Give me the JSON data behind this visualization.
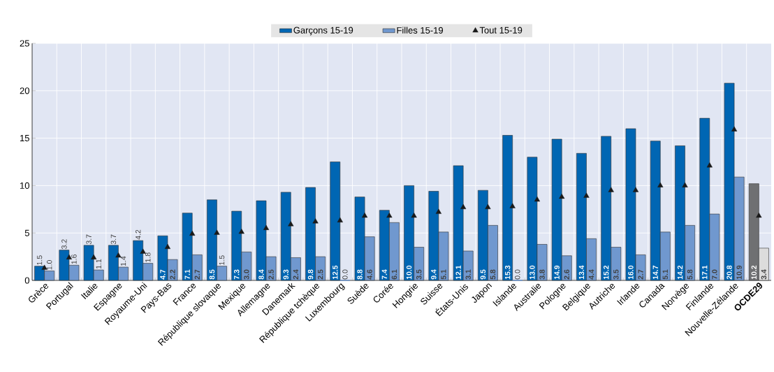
{
  "chart_data": {
    "type": "bar",
    "categories": [
      "Grèce",
      "Portugal",
      "Italie",
      "Espagne",
      "Royaume-Uni",
      "Pays-Bas",
      "France",
      "République slovaque",
      "Mexique",
      "Allemagne",
      "Danemark",
      "République tchèque",
      "Luxembourg",
      "Suède",
      "Corée",
      "Hongrie",
      "Suisse",
      "États-Unis",
      "Japon",
      "Islande",
      "Australie",
      "Pologne",
      "Belgique",
      "Autriche",
      "Irlande",
      "Canada",
      "Norvège",
      "Finlande",
      "Nouvelle-Zélande",
      "**OCDE29**"
    ],
    "series": [
      {
        "name": "Garçons 15-19",
        "color": "#0066b3",
        "colors": [
          "#0066b3",
          "#0066b3",
          "#0066b3",
          "#0066b3",
          "#0066b3",
          "#0066b3",
          "#0066b3",
          "#0066b3",
          "#0066b3",
          "#0066b3",
          "#0066b3",
          "#0066b3",
          "#0066b3",
          "#0066b3",
          "#0066b3",
          "#0066b3",
          "#0066b3",
          "#0066b3",
          "#0066b3",
          "#0066b3",
          "#0066b3",
          "#0066b3",
          "#0066b3",
          "#0066b3",
          "#0066b3",
          "#0066b3",
          "#0066b3",
          "#0066b3",
          "#0066b3",
          "#6f7072"
        ],
        "values": [
          1.5,
          3.2,
          3.7,
          3.7,
          4.2,
          4.7,
          7.1,
          8.5,
          7.3,
          8.4,
          9.3,
          9.8,
          12.5,
          8.8,
          7.4,
          10.0,
          9.4,
          12.1,
          9.5,
          15.3,
          13.0,
          14.9,
          13.4,
          15.2,
          16.0,
          14.7,
          14.2,
          17.1,
          20.8,
          10.2
        ],
        "value_labels": [
          "1.5",
          "3.2",
          "3.7",
          "3.7",
          "4.2",
          "4.7",
          "7.1",
          "8.5",
          "7.3",
          "8.4",
          "9.3",
          "9.8",
          "12.5",
          "8.8",
          "7.4",
          "10.0",
          "9.4",
          "12.1",
          "9.5",
          "15.3",
          "13.0",
          "14.9",
          "13.4",
          "15.2",
          "16.0",
          "14.7",
          "14.2",
          "17.1",
          "20.8",
          "10.2"
        ]
      },
      {
        "name": "Filles 15-19",
        "color": "#7098cf",
        "colors": [
          "#7098cf",
          "#7098cf",
          "#7098cf",
          "#7098cf",
          "#7098cf",
          "#7098cf",
          "#7098cf",
          "#7098cf",
          "#7098cf",
          "#7098cf",
          "#7098cf",
          "#7098cf",
          "#7098cf",
          "#7098cf",
          "#7098cf",
          "#7098cf",
          "#7098cf",
          "#7098cf",
          "#7098cf",
          "#7098cf",
          "#7098cf",
          "#7098cf",
          "#7098cf",
          "#7098cf",
          "#7098cf",
          "#7098cf",
          "#7098cf",
          "#7098cf",
          "#7098cf",
          "#dcdcdc"
        ],
        "values": [
          1.0,
          1.6,
          1.1,
          1.4,
          1.8,
          2.2,
          2.7,
          1.5,
          3.0,
          2.5,
          2.4,
          2.5,
          0.0,
          4.6,
          6.1,
          3.5,
          5.1,
          3.1,
          5.8,
          0.0,
          3.8,
          2.6,
          4.4,
          3.5,
          2.7,
          5.1,
          5.8,
          7.0,
          10.9,
          3.4
        ],
        "value_labels": [
          "1.0",
          "1.6",
          "1.1",
          "1.4",
          "1.8",
          "2.2",
          "2.7",
          "1.5",
          "3.0",
          "2.5",
          "2.4",
          "2.5",
          "0.0",
          "4.6",
          "6.1",
          "3.5",
          "5.1",
          "3.1",
          "5.8",
          "0.0",
          "3.8",
          "2.6",
          "4.4",
          "3.5",
          "2.7",
          "5.1",
          "5.8",
          "7.0",
          "10.9",
          "3.4"
        ]
      },
      {
        "name": "Tout 15-19",
        "type": "scatter",
        "color": "#1a1a1a",
        "marker": "triangle",
        "values": [
          1.3,
          2.4,
          2.4,
          2.6,
          3.0,
          3.5,
          4.9,
          5.0,
          5.1,
          5.5,
          5.9,
          6.2,
          6.3,
          6.8,
          6.8,
          6.8,
          7.2,
          7.7,
          7.7,
          7.8,
          8.5,
          8.8,
          8.9,
          9.5,
          9.5,
          10.0,
          10.0,
          12.1,
          15.9,
          6.8
        ]
      }
    ],
    "ylim": [
      0,
      25
    ],
    "yticks": [
      0,
      5,
      10,
      15,
      20,
      25
    ],
    "grid": true,
    "legend": "top"
  }
}
